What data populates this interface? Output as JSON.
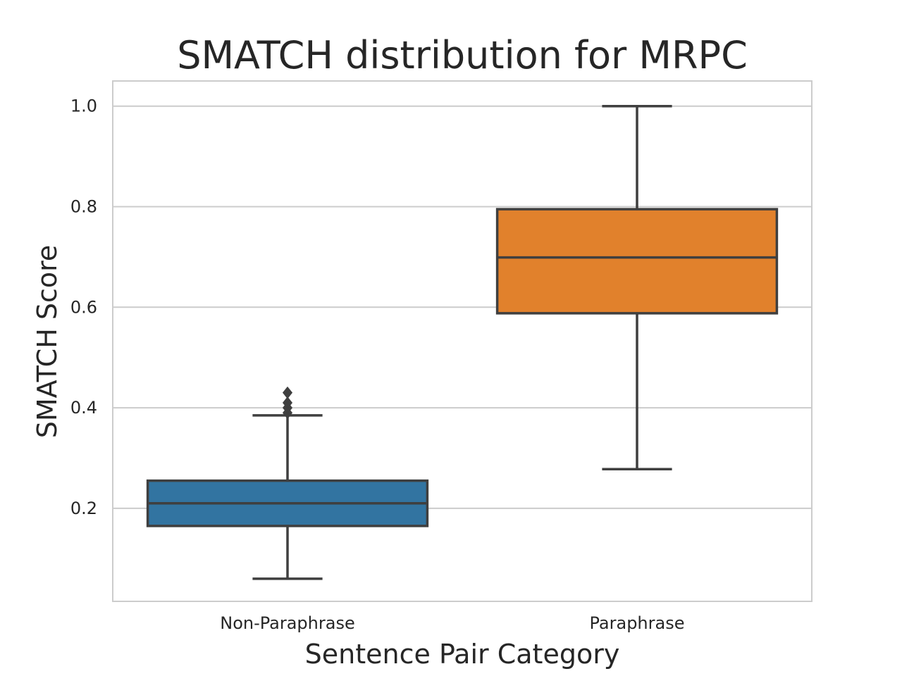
{
  "chart_data": {
    "type": "box",
    "title": "SMATCH distribution for MRPC",
    "xlabel": "Sentence Pair Category",
    "ylabel": "SMATCH Score",
    "categories": [
      "Non-Paraphrase",
      "Paraphrase"
    ],
    "ylim": [
      0.015,
      1.05
    ],
    "yticks": [
      0.2,
      0.4,
      0.6,
      0.8,
      1.0
    ],
    "ytick_labels": [
      "0.2",
      "0.4",
      "0.6",
      "0.8",
      "1.0"
    ],
    "grid": true,
    "legend": "none",
    "boxes": [
      {
        "category": "Non-Paraphrase",
        "color": "#3274a1",
        "whisker_low": 0.06,
        "q1": 0.165,
        "median": 0.21,
        "q3": 0.255,
        "whisker_high": 0.385,
        "outliers": [
          0.39,
          0.4,
          0.41,
          0.43
        ]
      },
      {
        "category": "Paraphrase",
        "color": "#e1812c",
        "whisker_low": 0.278,
        "q1": 0.588,
        "median": 0.699,
        "q3": 0.795,
        "whisker_high": 1.0,
        "outliers": []
      }
    ]
  }
}
